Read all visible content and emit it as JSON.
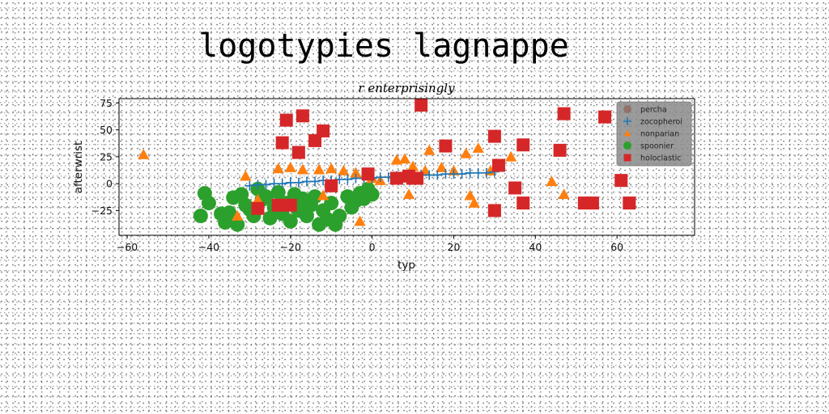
{
  "chart_data": {
    "type": "scatter",
    "title": "logotypies lagnappe",
    "subtitle": "r enterprisingly",
    "xlabel": "typ",
    "ylabel": "afterwrist",
    "xlim": [
      -62,
      79
    ],
    "ylim": [
      -48,
      79
    ],
    "xticks": [
      -60,
      -40,
      -20,
      0,
      20,
      40,
      60
    ],
    "yticks": [
      -25,
      0,
      25,
      50,
      75
    ],
    "grid": false,
    "legend_position": "top-right",
    "series": [
      {
        "name": "percha",
        "marker": "none",
        "color": "#8c564b",
        "points": []
      },
      {
        "name": "zocopheroi",
        "marker": "plus",
        "color": "#1f77b4",
        "points": [
          [
            -30,
            -2
          ],
          [
            -28,
            -1
          ],
          [
            -26,
            -1
          ],
          [
            -24,
            0
          ],
          [
            -22,
            0
          ],
          [
            -20,
            1
          ],
          [
            -18,
            1
          ],
          [
            -16,
            2
          ],
          [
            -14,
            2
          ],
          [
            -12,
            3
          ],
          [
            -10,
            3
          ],
          [
            -8,
            4
          ],
          [
            -6,
            4
          ],
          [
            -4,
            5
          ],
          [
            -2,
            5
          ],
          [
            0,
            5
          ],
          [
            2,
            6
          ],
          [
            4,
            6
          ],
          [
            6,
            7
          ],
          [
            8,
            7
          ],
          [
            10,
            7
          ],
          [
            12,
            8
          ],
          [
            14,
            8
          ],
          [
            16,
            8
          ],
          [
            18,
            9
          ],
          [
            20,
            9
          ],
          [
            22,
            9
          ],
          [
            24,
            10
          ],
          [
            26,
            10
          ],
          [
            28,
            10
          ],
          [
            30,
            11
          ]
        ]
      },
      {
        "name": "nonparian",
        "marker": "triangle",
        "color": "#ff7f0e",
        "points": [
          [
            -56,
            27
          ],
          [
            -31,
            7
          ],
          [
            -23,
            14
          ],
          [
            -20,
            15
          ],
          [
            -17,
            13
          ],
          [
            -13,
            13
          ],
          [
            -10,
            14
          ],
          [
            -7,
            12
          ],
          [
            -4,
            10
          ],
          [
            -1,
            7
          ],
          [
            0,
            5
          ],
          [
            2,
            3
          ],
          [
            6,
            22
          ],
          [
            8,
            23
          ],
          [
            10,
            16
          ],
          [
            13,
            12
          ],
          [
            14,
            31
          ],
          [
            17,
            15
          ],
          [
            20,
            12
          ],
          [
            23,
            28
          ],
          [
            26,
            33
          ],
          [
            29,
            12
          ],
          [
            34,
            25
          ],
          [
            44,
            2
          ],
          [
            47,
            -10
          ],
          [
            24,
            -11
          ],
          [
            25,
            -18
          ],
          [
            9,
            -10
          ],
          [
            -3,
            -35
          ],
          [
            -28,
            -15
          ],
          [
            -33,
            -30
          ],
          [
            -12,
            -11
          ]
        ]
      },
      {
        "name": "spoonier",
        "marker": "circle",
        "color": "#2ca02c",
        "points": [
          [
            -41,
            -9
          ],
          [
            -40,
            -18
          ],
          [
            -37,
            -28
          ],
          [
            -35,
            -27
          ],
          [
            -34,
            -13
          ],
          [
            -33,
            -38
          ],
          [
            -32,
            -10
          ],
          [
            -31,
            -20
          ],
          [
            -30,
            -24
          ],
          [
            -29,
            -30
          ],
          [
            -28,
            -5
          ],
          [
            -27,
            -15
          ],
          [
            -26,
            -12
          ],
          [
            -25,
            -32
          ],
          [
            -24,
            -22
          ],
          [
            -23,
            -8
          ],
          [
            -22,
            -28
          ],
          [
            -21,
            -18
          ],
          [
            -20,
            -35
          ],
          [
            -19,
            -10
          ],
          [
            -18,
            -25
          ],
          [
            -17,
            -14
          ],
          [
            -16,
            -30
          ],
          [
            -15,
            -20
          ],
          [
            -14,
            -12
          ],
          [
            -13,
            -38
          ],
          [
            -12,
            -25
          ],
          [
            -11,
            -33
          ],
          [
            -10,
            -18
          ],
          [
            -9,
            -38
          ],
          [
            -8,
            -30
          ],
          [
            -5,
            -22
          ],
          [
            -4,
            -16
          ],
          [
            -3,
            -9
          ],
          [
            -2,
            -14
          ],
          [
            -1,
            -5
          ],
          [
            0,
            -10
          ],
          [
            -42,
            -30
          ],
          [
            -36,
            -36
          ],
          [
            -6,
            -12
          ]
        ]
      },
      {
        "name": "holoclastic",
        "marker": "square",
        "color": "#d62728",
        "points": [
          [
            -21,
            59
          ],
          [
            -17,
            63
          ],
          [
            -14,
            40
          ],
          [
            -12,
            49
          ],
          [
            -22,
            38
          ],
          [
            -18,
            29
          ],
          [
            12,
            73
          ],
          [
            -10,
            -2
          ],
          [
            -1,
            9
          ],
          [
            6,
            5
          ],
          [
            9,
            7
          ],
          [
            10,
            5
          ],
          [
            11,
            5
          ],
          [
            18,
            35
          ],
          [
            30,
            44
          ],
          [
            31,
            17
          ],
          [
            37,
            36
          ],
          [
            46,
            31
          ],
          [
            47,
            65
          ],
          [
            57,
            62
          ],
          [
            35,
            -4
          ],
          [
            37,
            -18
          ],
          [
            30,
            -25
          ],
          [
            52,
            -18
          ],
          [
            54,
            -18
          ],
          [
            61,
            3
          ],
          [
            63,
            -18
          ],
          [
            -23,
            -20
          ],
          [
            -20,
            -20
          ],
          [
            -28,
            -23
          ]
        ]
      }
    ]
  }
}
